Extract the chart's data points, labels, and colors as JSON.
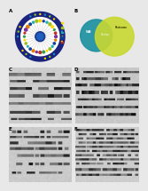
{
  "fig_bg": "#e0e0e0",
  "panel_bg_wb": "#b8b8b8",
  "panel_bg_light": "#d4d4d4",
  "outer_ring_color": "#1a237e",
  "venn_blue": "#1a8fa0",
  "venn_yellow": "#c8d830",
  "venn_overlap": "#70a830",
  "wb_light": 0.82,
  "wb_dark": 0.15,
  "wb_mid": 0.45,
  "band_thickness": 3,
  "white": "#ffffff",
  "label_color": "#111111",
  "gray_bg": 0.75
}
